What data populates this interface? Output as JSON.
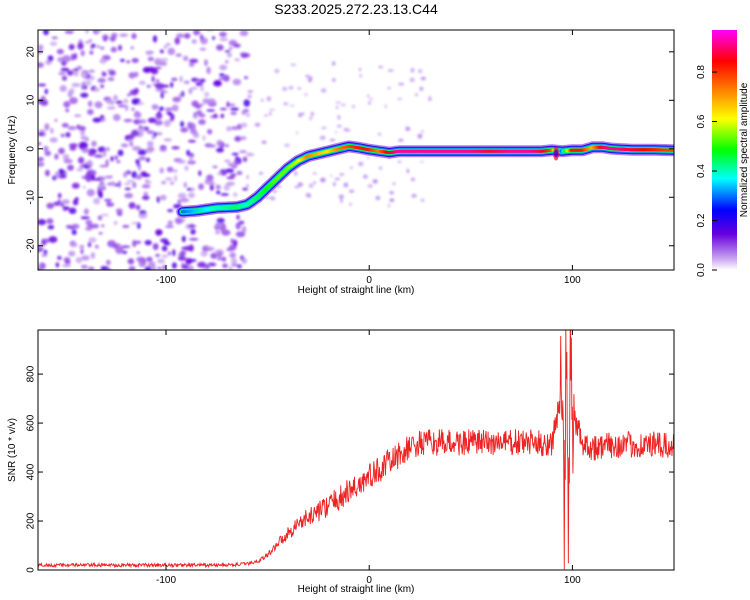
{
  "figure": {
    "title": "S233.2025.272.23.13.C44"
  },
  "chart_data": [
    {
      "type": "heatmap",
      "xlabel": "Height of straight line (km)",
      "ylabel": "Frequency (Hz)",
      "xlim": [
        -163,
        150
      ],
      "ylim": [
        -25,
        24.5
      ],
      "xticks": [
        -100,
        0,
        100
      ],
      "yticks": [
        -20,
        -10,
        0,
        10,
        20
      ],
      "colorbar": {
        "label": "Normalized spectral amplitude",
        "range": [
          0,
          0.97
        ],
        "ticks": [
          0,
          0.2,
          0.4,
          0.6,
          0.8
        ],
        "tick_labels": [
          "0.0",
          "0.2",
          "0.4",
          "0.6",
          "0.8"
        ]
      },
      "noise_region": {
        "x_end_km": -60,
        "description": "scattered low-amplitude purple noise"
      },
      "ridge": {
        "x": [
          -92,
          -85,
          -75,
          -65,
          -60,
          -55,
          -50,
          -45,
          -40,
          -35,
          -30,
          -25,
          -20,
          -15,
          -10,
          -5,
          0,
          5,
          10,
          15,
          20,
          30,
          40,
          50,
          60,
          70,
          80,
          85,
          90,
          95,
          100,
          105,
          110,
          115,
          120,
          130,
          140,
          150
        ],
        "y": [
          -13,
          -12.8,
          -12.2,
          -12,
          -11.5,
          -10,
          -8,
          -6,
          -4,
          -2.5,
          -1.5,
          -1,
          -0.5,
          0,
          0.5,
          0.2,
          -0.2,
          -0.5,
          -0.8,
          -0.5,
          -0.5,
          -0.5,
          -0.5,
          -0.5,
          -0.5,
          -0.5,
          -0.5,
          -0.5,
          -0.3,
          -0.5,
          -0.3,
          -0.3,
          0.3,
          0.3,
          0,
          -0.2,
          -0.2,
          -0.3
        ],
        "amplitude": [
          0.3,
          0.35,
          0.4,
          0.45,
          0.4,
          0.45,
          0.5,
          0.55,
          0.55,
          0.6,
          0.75,
          0.7,
          0.65,
          0.75,
          0.8,
          0.85,
          0.85,
          0.75,
          0.9,
          0.95,
          0.95,
          0.95,
          0.95,
          0.95,
          0.9,
          0.95,
          0.95,
          0.9,
          0.8,
          0.3,
          0.85,
          0.85,
          0.7,
          0.9,
          0.95,
          0.9,
          0.85,
          0.8
        ]
      },
      "colormap": "rainbow (white-purple-blue-cyan-green-yellow-orange-red-magenta)"
    },
    {
      "type": "line",
      "xlabel": "Height of straight line (km)",
      "ylabel": "SNR (10 * v/v)",
      "xlim": [
        -163,
        150
      ],
      "ylim": [
        0,
        980
      ],
      "xticks": [
        -100,
        0,
        100
      ],
      "yticks": [
        0,
        200,
        400,
        600,
        800
      ],
      "series": [
        {
          "color": "#ee2222",
          "x": [
            -163,
            -120,
            -90,
            -70,
            -60,
            -55,
            -50,
            -45,
            -40,
            -35,
            -30,
            -25,
            -20,
            -15,
            -10,
            -5,
            0,
            5,
            10,
            15,
            20,
            25,
            30,
            40,
            50,
            60,
            70,
            80,
            85,
            90,
            93,
            95,
            96,
            97,
            98,
            99,
            100,
            102,
            105,
            110,
            120,
            130,
            140,
            150
          ],
          "y": [
            20,
            20,
            20,
            20,
            25,
            35,
            60,
            110,
            150,
            190,
            215,
            240,
            265,
            290,
            320,
            350,
            380,
            410,
            440,
            470,
            500,
            515,
            520,
            520,
            520,
            520,
            520,
            520,
            515,
            520,
            650,
            750,
            150,
            950,
            120,
            900,
            600,
            600,
            520,
            500,
            510,
            510,
            510,
            500
          ]
        }
      ]
    }
  ]
}
